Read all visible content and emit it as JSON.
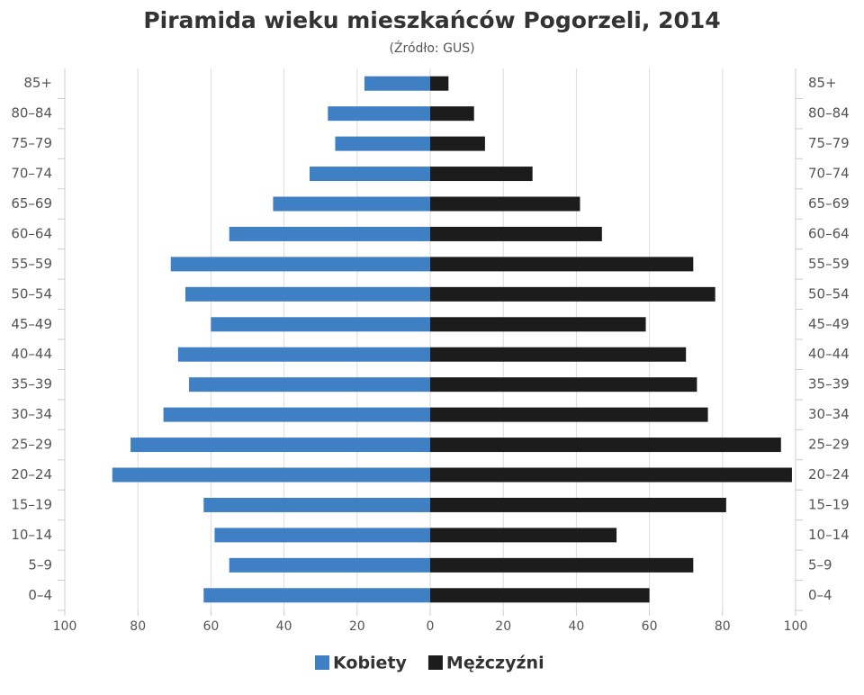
{
  "chart_data": {
    "type": "pyramid",
    "title": "Piramida wieku mieszkańców Pogorzeli, 2014",
    "subtitle": "(Źródło: GUS)",
    "categories": [
      "0–4",
      "5–9",
      "10–14",
      "15–19",
      "20–24",
      "25–29",
      "30–34",
      "35–39",
      "40–44",
      "45–49",
      "50–54",
      "55–59",
      "60–64",
      "65–69",
      "70–74",
      "75–79",
      "80–84",
      "85+"
    ],
    "series": [
      {
        "name": "Kobiety",
        "color": "#3f7fc4",
        "values": [
          -62,
          -55,
          -59,
          -62,
          -87,
          -82,
          -73,
          -66,
          -69,
          -60,
          -67,
          -71,
          -55,
          -43,
          -33,
          -26,
          -28,
          -18
        ]
      },
      {
        "name": "Mężczyźni",
        "color": "#1c1c1c",
        "values": [
          60,
          72,
          51,
          81,
          99,
          96,
          76,
          73,
          70,
          59,
          78,
          72,
          47,
          41,
          28,
          15,
          12,
          5
        ]
      }
    ],
    "xlim": [
      -100,
      100
    ],
    "xticks": [
      {
        "value": -100,
        "label": "100"
      },
      {
        "value": -80,
        "label": "80"
      },
      {
        "value": -60,
        "label": "60"
      },
      {
        "value": -40,
        "label": "40"
      },
      {
        "value": -20,
        "label": "20"
      },
      0,
      20,
      40,
      60,
      80,
      100
    ],
    "grid": true
  }
}
